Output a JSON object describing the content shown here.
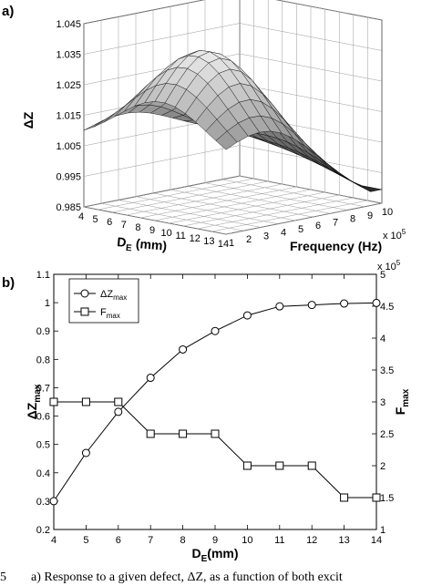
{
  "chart_data": [
    {
      "panel": "a)",
      "type": "surface",
      "zlabel": "ΔZ",
      "xlabel_main": "D",
      "xlabel_sub": "E",
      "xlabel_unit": " (mm)",
      "ylabel": "Frequency (Hz)",
      "y_multiplier": "x 10",
      "y_multiplier_exp": "5",
      "zlim": [
        0.985,
        1.045
      ],
      "z_ticks": [
        "0.985",
        "0.995",
        "1.005",
        "1.015",
        "1.025",
        "1.035",
        "1.045"
      ],
      "x_ticks": [
        "4",
        "5",
        "6",
        "7",
        "8",
        "9",
        "10",
        "11",
        "12",
        "13",
        "14"
      ],
      "y_ticks": [
        "1",
        "2",
        "3",
        "4",
        "5",
        "6",
        "7",
        "8",
        "9",
        "10"
      ],
      "grid": true
    },
    {
      "panel": "b)",
      "type": "line",
      "x": [
        4,
        5,
        6,
        7,
        8,
        9,
        10,
        11,
        12,
        13,
        14
      ],
      "xlabel_main": "D",
      "xlabel_sub": "E",
      "xlabel_unit": "(mm)",
      "xlim": [
        4,
        14
      ],
      "x_ticks": [
        "4",
        "5",
        "6",
        "7",
        "8",
        "9",
        "10",
        "11",
        "12",
        "13",
        "14"
      ],
      "ylabel_left_main": "ΔZ",
      "ylabel_left_sub": "max",
      "ylim_left": [
        0.2,
        1.1
      ],
      "y_ticks_left": [
        "0.2",
        "0.3",
        "0.4",
        "0.5",
        "0.6",
        "0.7",
        "0.8",
        "0.9",
        "1",
        "1.1"
      ],
      "ylabel_right_main": "F",
      "ylabel_right_sub": "max",
      "right_multiplier": "x 10",
      "right_multiplier_exp": "5",
      "ylim_right": [
        1,
        5
      ],
      "y_ticks_right": [
        "1",
        "1.5",
        "2",
        "2.5",
        "3",
        "3.5",
        "4",
        "4.5",
        "5"
      ],
      "legend_position": "top-left",
      "series": [
        {
          "name_main": "ΔZ",
          "name_sub": "max",
          "axis": "left",
          "marker": "circle",
          "values": [
            0.3,
            0.47,
            0.615,
            0.735,
            0.835,
            0.9,
            0.955,
            0.987,
            0.992,
            0.997,
            0.999
          ]
        },
        {
          "name_main": "F",
          "name_sub": "max",
          "axis": "right",
          "marker": "square",
          "values": [
            3.0,
            3.0,
            3.0,
            2.5,
            2.5,
            2.5,
            2.0,
            2.0,
            2.0,
            1.5,
            1.5
          ]
        }
      ]
    }
  ],
  "caption": {
    "number": "5",
    "text": "a) Response to a given defect, ΔZ, as a function of both excit"
  }
}
